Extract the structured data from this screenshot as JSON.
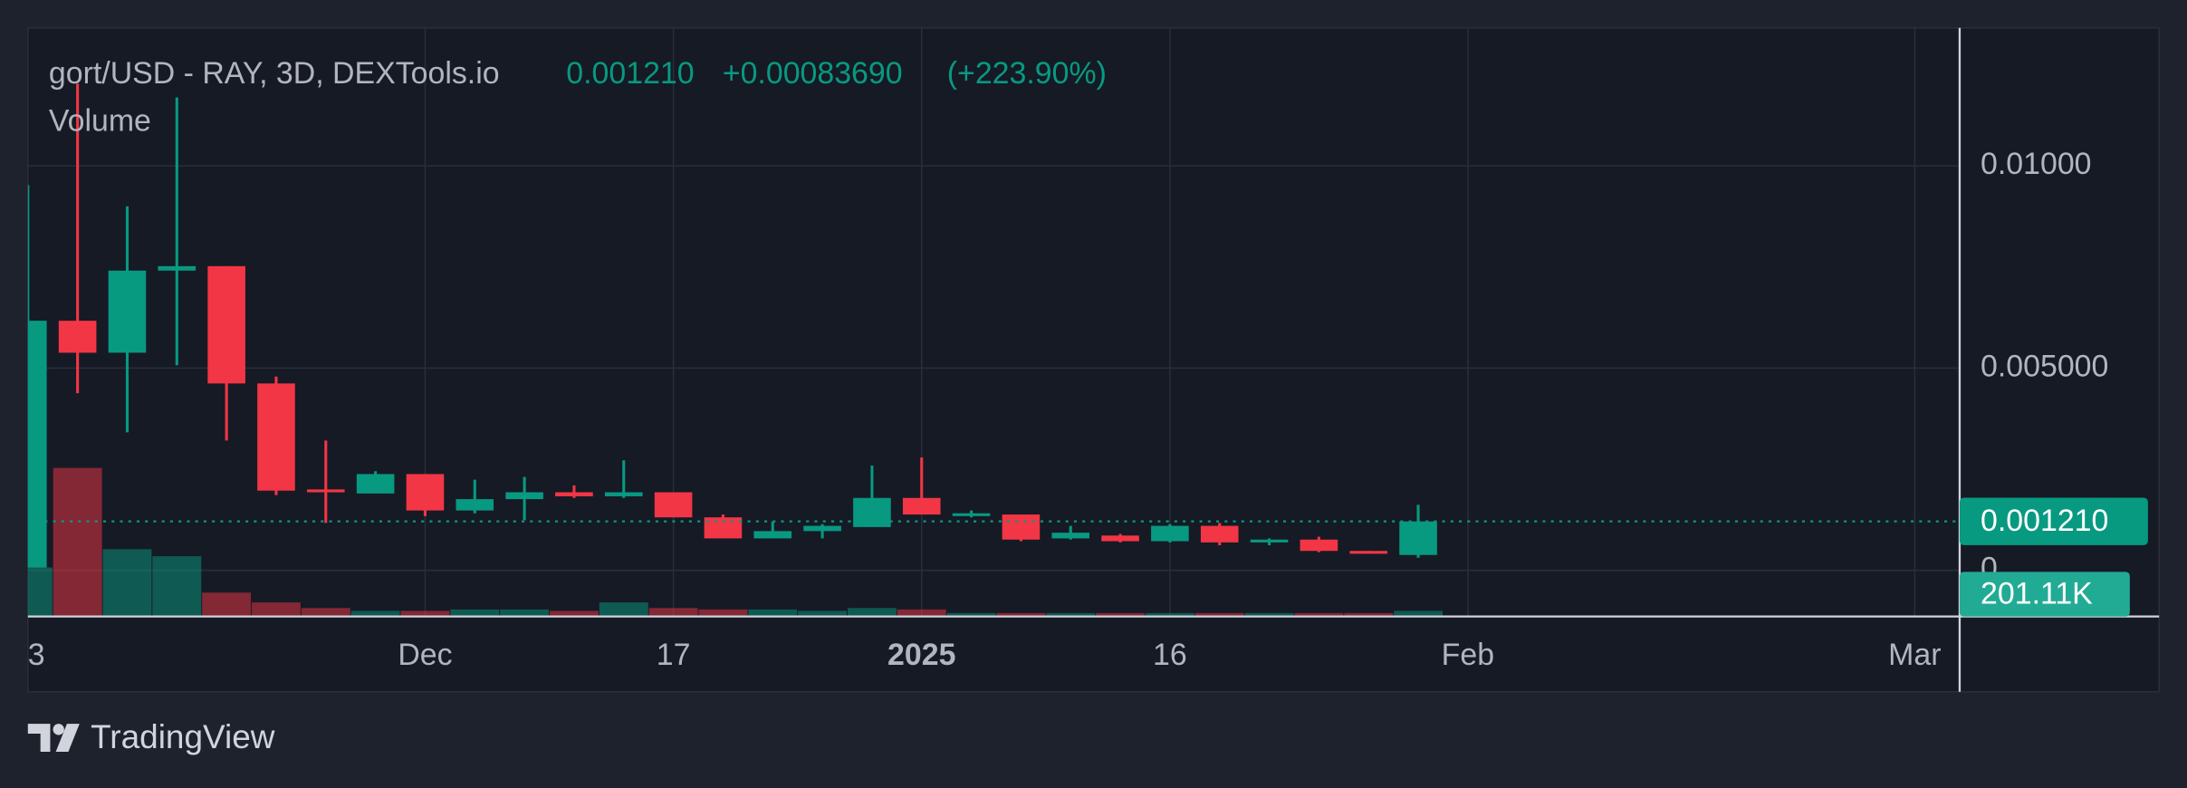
{
  "chart_data": {
    "type": "candlestick",
    "title": "gort/USD - RAY, 3D, DEXTools.io",
    "header_price": "0.001210",
    "header_change": "+0.00083690",
    "header_change_pct": "(+223.90%)",
    "volume_title": "Volume",
    "brand": "TradingView",
    "categories": [
      "3",
      null,
      null,
      null,
      null,
      null,
      null,
      null,
      "Dec",
      null,
      null,
      null,
      null,
      "17",
      null,
      null,
      null,
      null,
      "2025",
      null,
      null,
      null,
      null,
      "16",
      null,
      null,
      null,
      null,
      null,
      "Feb",
      null,
      null,
      null,
      null,
      null,
      null,
      null,
      null,
      "Mar"
    ],
    "bold_categories": [
      18
    ],
    "open": [
      7e-05,
      0.00617,
      0.00538,
      0.00741,
      0.00752,
      0.00462,
      0.002,
      0.0019,
      0.00238,
      0.00148,
      0.00176,
      0.00193,
      0.00183,
      0.00193,
      0.00131,
      0.00079,
      0.00097,
      0.00107,
      0.00179,
      0.00138,
      0.00138,
      0.00079,
      0.00086,
      0.00072,
      0.0011,
      0.00069,
      0.00076,
      0.00048,
      0.00038,
      null,
      null,
      null,
      null,
      null,
      null,
      null,
      null,
      null,
      null
    ],
    "high": [
      0.00952,
      0.01203,
      0.009,
      0.01169,
      0.00752,
      0.00479,
      0.00321,
      0.00245,
      0.00238,
      0.00224,
      0.00231,
      0.0021,
      0.00272,
      0.00193,
      0.00138,
      0.00121,
      0.00114,
      0.00259,
      0.00279,
      0.00148,
      0.00138,
      0.0011,
      0.0009,
      0.00114,
      0.00117,
      0.00079,
      0.00083,
      0.00048,
      0.00162,
      null,
      null,
      null,
      null,
      null,
      null,
      null,
      null,
      null,
      null
    ],
    "low": [
      7e-05,
      0.00438,
      0.00341,
      0.00507,
      0.00321,
      0.00186,
      0.00117,
      0.0019,
      0.00134,
      0.00141,
      0.00124,
      0.00179,
      0.00179,
      0.00131,
      0.00079,
      0.00079,
      0.00079,
      0.00107,
      0.00138,
      0.00131,
      0.00072,
      0.00076,
      0.00069,
      0.00069,
      0.00062,
      0.00062,
      0.00045,
      0.00041,
      0.00031,
      null,
      null,
      null,
      null,
      null,
      null,
      null,
      null,
      null,
      null
    ],
    "close": [
      0.00617,
      0.00538,
      0.00741,
      0.00752,
      0.00462,
      0.00197,
      0.00193,
      0.00238,
      0.00148,
      0.00176,
      0.00193,
      0.00183,
      0.00193,
      0.00131,
      0.00079,
      0.00097,
      0.0011,
      0.00179,
      0.00138,
      0.00141,
      0.00076,
      0.00093,
      0.00072,
      0.0011,
      0.00069,
      0.00076,
      0.00048,
      0.00041,
      0.00121,
      null,
      null,
      null,
      null,
      null,
      null,
      null,
      null,
      null,
      null
    ],
    "volume": [
      1750000,
      5300000,
      2400000,
      2150000,
      850000,
      500000,
      300000,
      200000,
      200000,
      250000,
      250000,
      200000,
      500000,
      300000,
      250000,
      250000,
      200000,
      300000,
      250000,
      120000,
      120000,
      120000,
      120000,
      120000,
      120000,
      120000,
      120000,
      120000,
      201110,
      null,
      null,
      null,
      null,
      null,
      null,
      null,
      null,
      null,
      null
    ],
    "volume_last_label": "201.11K",
    "last_price": {
      "value": 0.00121,
      "label": "0.001210"
    },
    "up_color": "#089981",
    "down_color": "#f23645",
    "ylim": [
      -0.00114,
      0.01341
    ],
    "yticks": [
      0,
      {
        "value": 0.005,
        "label": "0.005000"
      },
      {
        "value": 0.01,
        "label": "0.01000"
      }
    ],
    "y2lim": [
      0,
      21000000
    ],
    "grid": true
  }
}
